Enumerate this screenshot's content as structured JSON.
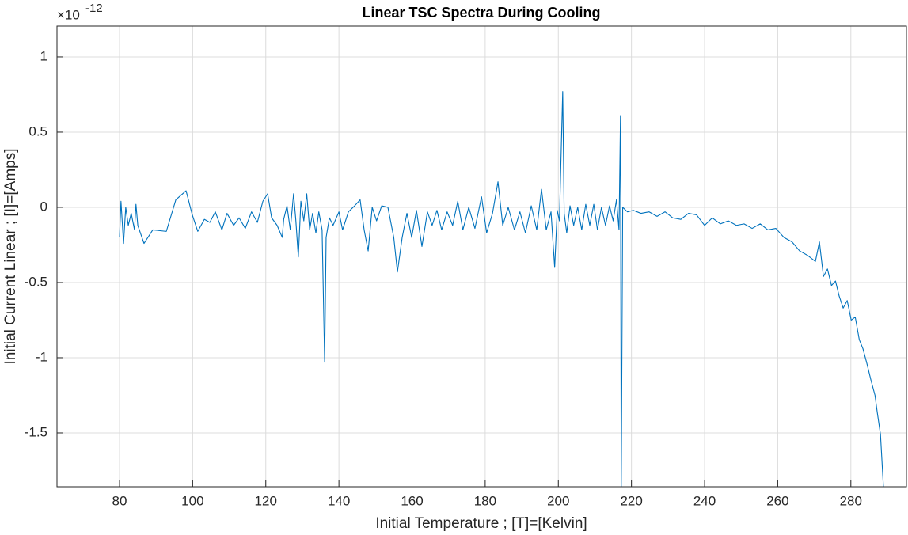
{
  "chart_data": {
    "type": "line",
    "title": "Linear TSC Spectra During Cooling",
    "xlabel": "Initial Temperature ; [T]=[Kelvin]",
    "ylabel": "Initial Current Linear ; [I]=[Amps]",
    "y_multiplier": "×10",
    "y_multiplier_exponent": "-12",
    "xlim": [
      62.9,
      295.2
    ],
    "ylim": [
      -1.858,
      1.205
    ],
    "xticks": [
      80,
      100,
      120,
      140,
      160,
      180,
      200,
      220,
      240,
      260,
      280
    ],
    "yticks": [
      -1.5,
      -1,
      -0.5,
      0,
      0.5,
      1
    ],
    "grid": true,
    "series": [
      {
        "color": "#0072bd",
        "x": [
          80.0,
          80.4,
          81.1,
          81.7,
          82.4,
          83.2,
          84.1,
          84.5,
          85,
          86.7,
          89.1,
          92.8,
          95.4,
          98.2,
          99.9,
          101.4,
          103.2,
          104.7,
          106.2,
          108,
          109.4,
          111.2,
          112.7,
          114.4,
          116.1,
          117.7,
          119.2,
          120.5,
          121.6,
          123.1,
          124.5,
          124.9,
          125.8,
          126.7,
          127.6,
          128.2,
          128.9,
          129.6,
          130.4,
          131.2,
          132,
          132.8,
          133.7,
          134.5,
          135.4,
          136.1,
          136.5,
          137.4,
          138.4,
          140,
          141,
          142.6,
          144.3,
          145.8,
          146.9,
          148,
          149.1,
          150.3,
          151.7,
          153.4,
          155,
          156,
          157.3,
          158.6,
          159.9,
          161.2,
          162.7,
          164.2,
          165.5,
          166.8,
          168.1,
          169.6,
          171.1,
          172.5,
          173.9,
          175.5,
          177.2,
          179,
          180.4,
          182,
          183.5,
          184.8,
          186.3,
          188,
          189.5,
          191,
          192.6,
          194.1,
          195.4,
          196.7,
          198,
          199,
          199.7,
          200.3,
          201.2,
          201.6,
          202.3,
          203.2,
          204.2,
          205.3,
          206.4,
          207.5,
          208.6,
          209.7,
          210.7,
          211.8,
          212.9,
          214,
          215,
          215.9,
          216.6,
          217,
          217.2,
          217.6,
          218.9,
          220.5,
          222.6,
          224.8,
          227,
          229.2,
          231.3,
          233.5,
          235.6,
          237.8,
          240,
          242.1,
          244.3,
          246.5,
          248.7,
          250.8,
          253,
          255.2,
          257.3,
          259.5,
          261.7,
          263.9,
          266,
          268.2,
          270.3,
          271.4,
          272.5,
          273.6,
          274.7,
          275.8,
          276.8,
          277.9,
          279,
          280.1,
          281.2,
          282.3,
          283.3,
          284.4,
          285.5,
          286.6,
          287.2,
          288.1,
          289
        ],
        "values": [
          -0.2,
          0.04,
          -0.24,
          0,
          -0.12,
          -0.04,
          -0.15,
          0.02,
          -0.12,
          -0.24,
          -0.15,
          -0.16,
          0.05,
          0.11,
          -0.05,
          -0.16,
          -0.08,
          -0.1,
          -0.03,
          -0.15,
          -0.04,
          -0.12,
          -0.07,
          -0.14,
          -0.03,
          -0.1,
          0.04,
          0.09,
          -0.07,
          -0.12,
          -0.2,
          -0.08,
          0.01,
          -0.15,
          0.09,
          -0.08,
          -0.33,
          0.04,
          -0.09,
          0.09,
          -0.15,
          -0.04,
          -0.17,
          -0.03,
          -0.15,
          -1.03,
          -0.2,
          -0.07,
          -0.12,
          -0.03,
          -0.15,
          -0.03,
          0.01,
          0.05,
          -0.15,
          -0.29,
          0,
          -0.09,
          0.01,
          0,
          -0.2,
          -0.43,
          -0.2,
          -0.04,
          -0.2,
          -0.02,
          -0.26,
          -0.03,
          -0.12,
          -0.02,
          -0.15,
          -0.03,
          -0.12,
          0.04,
          -0.15,
          0,
          -0.14,
          0.07,
          -0.17,
          -0.04,
          0.17,
          -0.12,
          0,
          -0.15,
          -0.03,
          -0.17,
          0.01,
          -0.15,
          0.12,
          -0.15,
          -0.03,
          -0.4,
          -0.02,
          -0.09,
          0.77,
          -0.04,
          -0.17,
          0.01,
          -0.12,
          0,
          -0.15,
          0.02,
          -0.12,
          0.02,
          -0.15,
          0,
          -0.12,
          0.01,
          -0.09,
          0.05,
          -0.15,
          0.61,
          -1.9,
          0,
          -0.03,
          -0.02,
          -0.04,
          -0.03,
          -0.06,
          -0.03,
          -0.07,
          -0.08,
          -0.04,
          -0.05,
          -0.12,
          -0.07,
          -0.11,
          -0.09,
          -0.12,
          -0.11,
          -0.14,
          -0.11,
          -0.15,
          -0.14,
          -0.2,
          -0.23,
          -0.29,
          -0.32,
          -0.36,
          -0.23,
          -0.46,
          -0.41,
          -0.52,
          -0.49,
          -0.59,
          -0.67,
          -0.62,
          -0.75,
          -0.73,
          -0.88,
          -0.94,
          -1.04,
          -1.15,
          -1.25,
          -1.36,
          -1.51,
          -1.9
        ]
      }
    ]
  }
}
